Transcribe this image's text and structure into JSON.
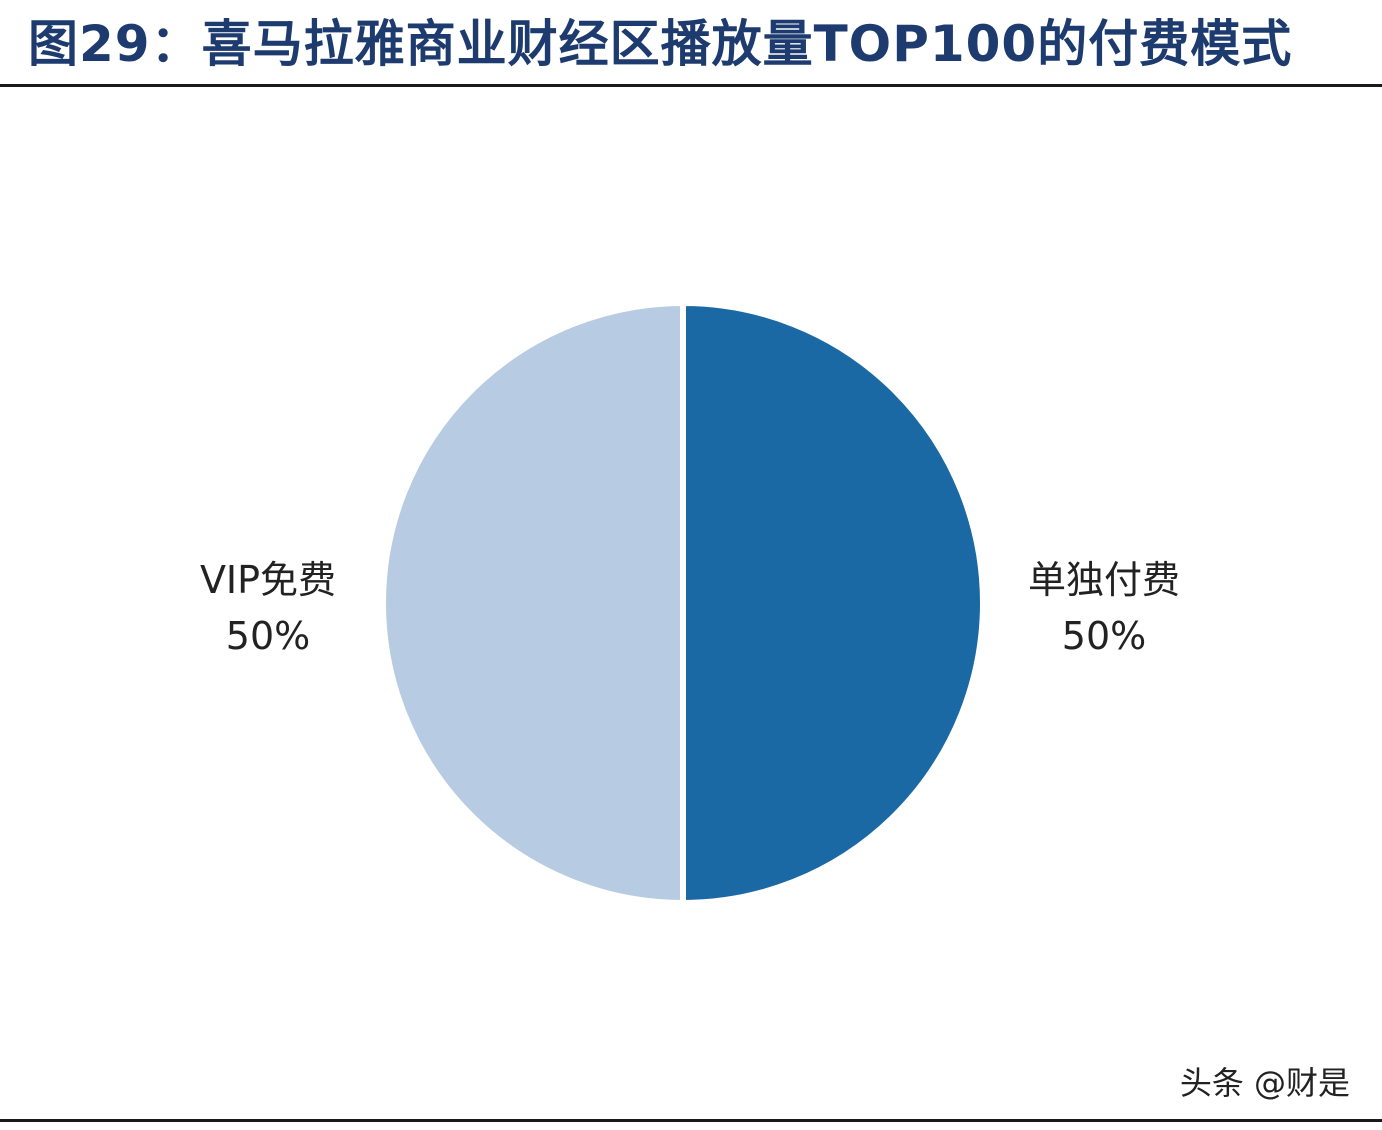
{
  "title": "图29：喜马拉雅商业财经区播放量TOP100的付费模式",
  "watermark": "头条 @财是",
  "colors": {
    "title": "#1d3b6e",
    "slice_dark": "#1b69a4",
    "slice_light": "#b7cbe3",
    "separator": "#ffffff"
  },
  "chart_data": {
    "type": "pie",
    "title": "",
    "slices": [
      {
        "label": "单独付费",
        "value": 50,
        "percent_label": "50%",
        "color": "#1b69a4"
      },
      {
        "label": "VIP免费",
        "value": 50,
        "percent_label": "50%",
        "color": "#b7cbe3"
      }
    ],
    "start_angle_deg": 0,
    "direction": "clockwise"
  }
}
